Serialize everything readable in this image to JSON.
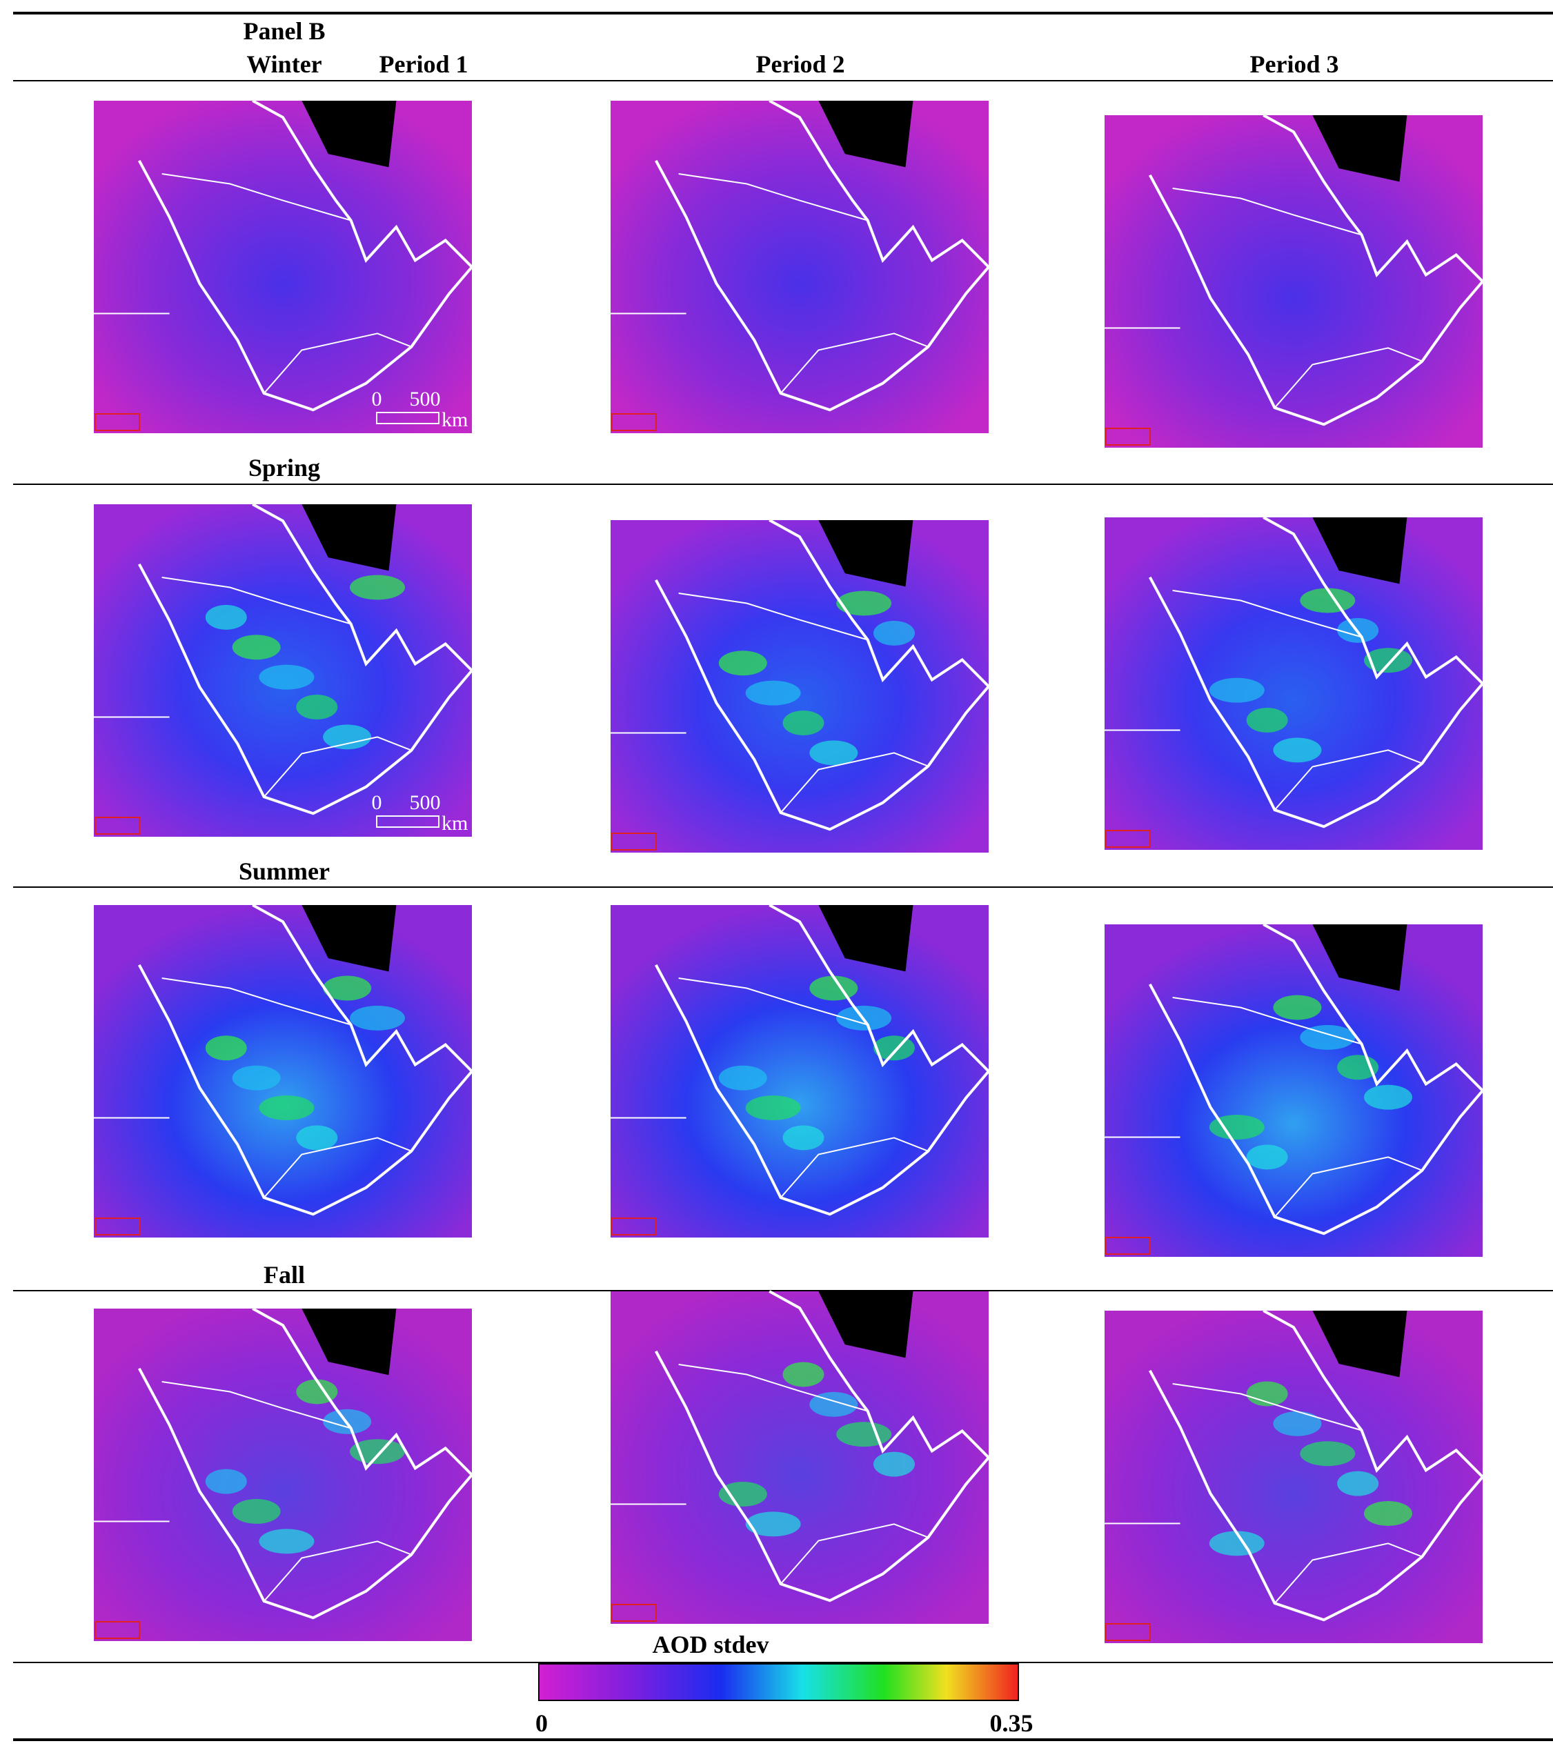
{
  "header": {
    "panel": "Panel B",
    "periods": [
      "Period 1",
      "Period 2",
      "Period 3"
    ]
  },
  "rows": [
    {
      "season": "Winter",
      "scale_bar": {
        "start": 0,
        "end": 500,
        "unit": "km"
      }
    },
    {
      "season": "Spring",
      "scale_bar": {
        "start": 0,
        "end": 500,
        "unit": "km"
      }
    },
    {
      "season": "Summer"
    },
    {
      "season": "Fall"
    }
  ],
  "colorbar": {
    "label": "AOD stdev",
    "min": 0,
    "max": 0.35
  }
}
